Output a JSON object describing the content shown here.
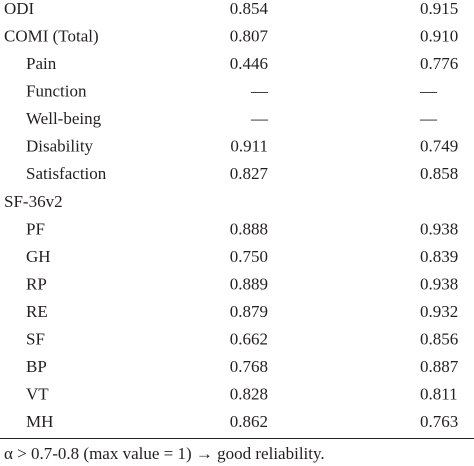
{
  "table": {
    "rows": [
      [
        "ODI",
        "0.854",
        "0.915"
      ],
      [
        "COMI (Total)",
        "0.807",
        "0.910"
      ],
      [
        "Pain",
        "0.446",
        "0.776"
      ],
      [
        "Function",
        "—",
        "—"
      ],
      [
        "Well-being",
        "—",
        "—"
      ],
      [
        "Disability",
        "0.911",
        "0.749"
      ],
      [
        "Satisfaction",
        "0.827",
        "0.858"
      ],
      [
        "SF-36v2",
        "",
        ""
      ],
      [
        "PF",
        "0.888",
        "0.938"
      ],
      [
        "GH",
        "0.750",
        "0.839"
      ],
      [
        "RP",
        "0.889",
        "0.938"
      ],
      [
        "RE",
        "0.879",
        "0.932"
      ],
      [
        "SF",
        "0.662",
        "0.856"
      ],
      [
        "BP",
        "0.768",
        "0.887"
      ],
      [
        "VT",
        "0.828",
        "0.811"
      ],
      [
        "MH",
        "0.862",
        "0.763"
      ]
    ]
  },
  "footnote": "α > 0.7-0.8 (max value = 1) → good reliability."
}
